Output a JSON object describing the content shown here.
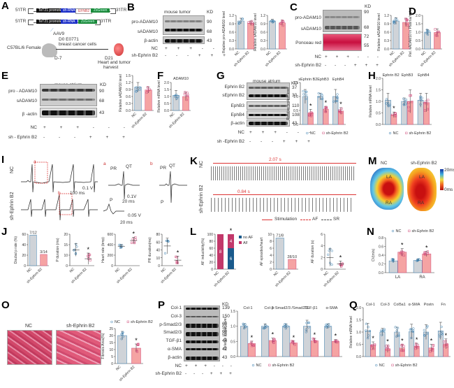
{
  "panels": {
    "A": {
      "label": "A",
      "itr_left": "5'ITR",
      "itr_right": "3'ITR",
      "promoter": "TeT21 promoter",
      "shrna": "sh-RNA",
      "gene": "EFNB2",
      "reporter": "ZsGreen",
      "vector": "AAV9",
      "mouse": "C57BL/6 Female mice",
      "d0": "D0 E0771",
      "d0b": "breast cancer cells",
      "dm7": "D-7",
      "d21": "D21",
      "harvest": "Heart and tumor",
      "harvest2": "harvest"
    },
    "B": {
      "label": "B",
      "title": "mouse tumor",
      "rows": [
        "pro-ADAM10",
        "sADAM10",
        "β-actin"
      ],
      "kd": [
        "90",
        "68",
        "43"
      ],
      "kd_label": "KD",
      "nc": "NC",
      "sh": "sh-Ephrin B2",
      "lanes_nc": [
        "+",
        "+",
        "+",
        "-",
        "-",
        "-"
      ],
      "lanes_sh": [
        "-",
        "-",
        "-",
        "+",
        "+",
        "+"
      ]
    },
    "C": {
      "label": "C",
      "rows": [
        "pro-ADAM10",
        "sADAM10",
        "Ponceau red"
      ],
      "kd": [
        "90",
        "68",
        "72",
        "55"
      ],
      "kd_label": "KD",
      "nc": "NC",
      "sh": "sh-Ephrin B2"
    },
    "D": {
      "label": "D"
    },
    "E": {
      "label": "E",
      "title": "mouse atrium",
      "rows": [
        "pro - ADAM10",
        "sADAM10",
        "β -actin"
      ],
      "kd": [
        "90",
        "68",
        "43"
      ],
      "kd_label": "KD",
      "nc": "NC",
      "sh": "sh - Ephrin B2"
    },
    "F": {
      "label": "F"
    },
    "G": {
      "label": "G",
      "title": "mouse atrium",
      "rows": [
        "Ephrin B2",
        "sEphrin B2",
        "EphB3",
        "EphB4",
        "β-actin"
      ],
      "kd": [
        "37",
        "30",
        "110",
        "108",
        "43"
      ],
      "kd_label": "KD",
      "nc": "NC",
      "sh": "sh -Ephrin B2"
    },
    "H": {
      "label": "H"
    },
    "I": {
      "label": "I",
      "nc": "NC",
      "sh": "sh-Ephrin B2",
      "a": "a",
      "b": "b",
      "scale_v": "0.1 V",
      "scale_t": "100 ms",
      "pr": "PR",
      "qt": "QT",
      "p": "P",
      "sv1": "0.1V",
      "st1": "20 ms",
      "sv2": "0.05 V",
      "st2": "20 ms"
    },
    "J": {
      "label": "J"
    },
    "K": {
      "label": "K",
      "nc": "NC",
      "sh": "sh-Ephrin B2",
      "dur_nc": "2.07 s",
      "dur_sh": "0.84 s",
      "legend": [
        "Stimulation",
        "AF",
        "SR"
      ]
    },
    "L": {
      "label": "L"
    },
    "M": {
      "label": "M",
      "nc": "NC",
      "sh": "sh-Ephrin B2",
      "la": "LA",
      "ra": "RA",
      "scale_max": "20ms",
      "scale_min": "0ms"
    },
    "N": {
      "label": "N"
    },
    "O": {
      "label": "O",
      "nc": "NC",
      "sh": "sh-Ephrin B2"
    },
    "P": {
      "label": "P",
      "rows": [
        "Col-1",
        "Col-3",
        "p-Smad2/3",
        "Smad2/3",
        "TGF-β1",
        "α-SMA",
        "β-actin"
      ],
      "kd": [
        "139",
        "150",
        "60 52",
        "60 52",
        "44",
        "42",
        "43"
      ],
      "kd_label": "KD",
      "nc": "NC",
      "sh": "sh-Ephrin B2"
    },
    "Q": {
      "label": "Q"
    }
  },
  "legend": {
    "nc": "NC",
    "sh": "sh-Ephrin B2"
  },
  "colors": {
    "nc_bar": "#cfd3d8",
    "nc_pt": "#3a7fb0",
    "sh_bar": "#f5a3a3",
    "sh_pt": "#d04a7a",
    "af": "#c2386a",
    "noaf": "#1a5a8c",
    "stim": "#d23a3a"
  },
  "chart_data": [
    {
      "id": "B1",
      "type": "bar",
      "ylabel": "Relative pro-ADAM10 level",
      "categories": [
        "NC",
        "sh-Ephrin B2"
      ],
      "values": [
        1.0,
        0.92
      ],
      "errors": [
        0.1,
        0.08
      ],
      "ylim": [
        0,
        1.2
      ],
      "yticks": [
        "0.0",
        "0.3",
        "0.6",
        "0.9",
        "1.2"
      ]
    },
    {
      "id": "B2",
      "type": "bar",
      "ylabel": "Relative sADAM10 level",
      "categories": [
        "NC",
        "sh-Ephrin B2"
      ],
      "values": [
        1.0,
        0.93
      ],
      "errors": [
        0.06,
        0.1
      ],
      "ylim": [
        0,
        1.2
      ],
      "yticks": [
        "0.0",
        "0.3",
        "0.6",
        "0.9",
        "1.2"
      ]
    },
    {
      "id": "C",
      "type": "bar",
      "ylabel": "Relative sADAM10 level",
      "categories": [
        "NC",
        "sh-Ephrin B2"
      ],
      "values": [
        1.0,
        0.95
      ],
      "errors": [
        0.12,
        0.15
      ],
      "ylim": [
        0,
        1.2
      ],
      "yticks": [
        "0.0",
        "0.3",
        "0.6",
        "0.9",
        "1.2"
      ]
    },
    {
      "id": "D",
      "type": "bar",
      "ylabel": "Rel. sADAM10 in Plasma/ng/ml",
      "categories": [
        "NC",
        "sh-Ephrin B2"
      ],
      "values": [
        1.0,
        0.98
      ],
      "errors": [
        0.15,
        0.22
      ],
      "ylim": [
        0,
        2.0
      ],
      "yticks": [
        "0.0",
        "0.5",
        "1.0",
        "1.5",
        "2.0"
      ]
    },
    {
      "id": "E",
      "type": "bar",
      "ylabel": "Relative sADAM10 level",
      "categories": [
        "NC",
        "sh-Ephrin B2"
      ],
      "values": [
        1.0,
        0.88
      ],
      "errors": [
        0.2,
        0.13
      ],
      "ylim": [
        0,
        1.5
      ],
      "yticks": [
        "0.0",
        "0.3",
        "0.6",
        "0.9",
        "1.2",
        "1.5"
      ]
    },
    {
      "id": "F",
      "type": "bar",
      "title": "ADAM10",
      "ylabel": "Relative mRNA level",
      "categories": [
        "NC",
        "sh-Ephrin B2"
      ],
      "values": [
        1.08,
        1.0
      ],
      "errors": [
        0.35,
        0.3
      ],
      "ylim": [
        0,
        2.0
      ],
      "yticks": [
        "0.0",
        "0.5",
        "1.0",
        "1.5",
        "2.0"
      ]
    },
    {
      "id": "G",
      "type": "bar",
      "ylabel": "Relative protein level",
      "groups": [
        "sEphrin B2",
        "EphB3",
        "EphB4"
      ],
      "series": [
        {
          "name": "NC",
          "values": [
            1.0,
            1.0,
            1.0
          ],
          "errors": [
            0.25,
            0.12,
            0.25
          ]
        },
        {
          "name": "sh-Ephrin B2",
          "values": [
            0.42,
            0.55,
            0.48
          ],
          "errors": [
            0.12,
            0.1,
            0.12
          ]
        }
      ],
      "sig": [
        true,
        true,
        true
      ],
      "ylim": [
        0,
        1.5
      ],
      "yticks": [
        "0.0",
        "0.5",
        "1.0",
        "1.5"
      ]
    },
    {
      "id": "H",
      "type": "bar",
      "ylabel": "Relative mRNA level",
      "groups": [
        "Ephrin B2",
        "EphB3",
        "EphB4"
      ],
      "series": [
        {
          "name": "NC",
          "values": [
            1.05,
            1.0,
            1.05
          ],
          "errors": [
            0.3,
            0.15,
            0.3
          ]
        },
        {
          "name": "sh-Ephrin B2",
          "values": [
            0.42,
            1.0,
            0.95
          ],
          "errors": [
            0.12,
            0.5,
            0.4
          ]
        }
      ],
      "sig": [
        true,
        false,
        false
      ],
      "ylim": [
        0,
        2.0
      ],
      "yticks": [
        "0.0",
        "0.5",
        "1.0",
        "1.5",
        "2.0"
      ]
    },
    {
      "id": "J1",
      "type": "bar",
      "ylabel": "Doubal p rate (%)",
      "categories": [
        "NC",
        "sh-Ephrin B2"
      ],
      "values": [
        58.3,
        21.4
      ],
      "labels": [
        "7/12",
        "3/14"
      ],
      "ylim": [
        0,
        60
      ],
      "yticks": [
        "0",
        "20",
        "40",
        "60"
      ]
    },
    {
      "id": "J2",
      "type": "scatter",
      "ylabel": "P duration (ms)",
      "categories": [
        "NC",
        "sh-Ephrin B2"
      ],
      "values": [
        15,
        12.2
      ],
      "errors": [
        2,
        1.8
      ],
      "sig": true,
      "ylim": [
        10,
        20
      ],
      "yticks": [
        "0",
        "10",
        "15",
        "20"
      ]
    },
    {
      "id": "J3",
      "type": "scatter",
      "ylabel": "Heart rate (bmp)",
      "categories": [
        "NC",
        "sh-Ephrin B2"
      ],
      "values": [
        370,
        480
      ],
      "errors": [
        30,
        60
      ],
      "sig": true,
      "ylim": [
        0,
        600
      ],
      "yticks": [
        "0",
        "200",
        "400",
        "600"
      ]
    },
    {
      "id": "J4",
      "type": "scatter",
      "ylabel": "PR duration(ms)",
      "categories": [
        "NC",
        "sh-Ephrin B2"
      ],
      "values": [
        65,
        47
      ],
      "errors": [
        10,
        5
      ],
      "sig": true,
      "ylim": [
        40,
        80
      ],
      "yticks": [
        "0",
        "10",
        "40",
        "60",
        "80"
      ]
    },
    {
      "id": "L1",
      "type": "stacked-bar",
      "ylabel": "AF inducibility(%)",
      "categories": [
        "NC",
        "sh-Ephrin B2"
      ],
      "series": [
        {
          "name": "AF",
          "values": [
            100,
            40
          ],
          "labels": [
            "8",
            "4"
          ]
        },
        {
          "name": "no AF",
          "values": [
            0,
            60
          ],
          "labels": [
            "",
            "6"
          ]
        }
      ],
      "sig": [
        false,
        true
      ],
      "ylim": [
        0,
        100
      ],
      "yticks": [
        "0",
        "20",
        "40",
        "60",
        "80",
        "100"
      ]
    },
    {
      "id": "L2",
      "type": "bar",
      "ylabel": "AF episodes/heart",
      "categories": [
        "NC",
        "sh-Ephrin B2"
      ],
      "values": [
        8.9,
        2.8
      ],
      "labels": [
        "71/8",
        "28/10"
      ],
      "ylim": [
        0,
        10
      ],
      "yticks": [
        "0",
        "2",
        "4",
        "6",
        "8",
        "10"
      ]
    },
    {
      "id": "L3",
      "type": "scatter",
      "ylabel": "AF duration (s)",
      "categories": [
        "NC",
        "sh-Ephrin B2"
      ],
      "values": [
        2.0,
        0.9
      ],
      "errors": [
        1.5,
        0.5
      ],
      "sig": true,
      "ylim": [
        0,
        6
      ],
      "yticks": [
        "0",
        "2",
        "4",
        "6"
      ]
    },
    {
      "id": "N",
      "type": "bar",
      "ylabel": "CV(m/s)",
      "groups": [
        "LA",
        "RA"
      ],
      "series": [
        {
          "name": "NC",
          "values": [
            0.27,
            0.28
          ],
          "errors": [
            0.04,
            0.03
          ]
        },
        {
          "name": "sh-Ephrin B2",
          "values": [
            0.47,
            0.43
          ],
          "errors": [
            0.08,
            0.06
          ]
        }
      ],
      "sig": [
        true,
        true
      ],
      "ylim": [
        0,
        0.8
      ],
      "yticks": [
        "0.0",
        "0.2",
        "0.4",
        "0.6",
        "0.8"
      ]
    },
    {
      "id": "O",
      "type": "bar",
      "ylabel": "Fibrosis Area(%)",
      "categories": [
        "NC",
        "sh-Ephrin B2"
      ],
      "values": [
        20,
        11
      ],
      "errors": [
        3,
        3
      ],
      "sig": [
        false,
        true
      ],
      "ylim": [
        0,
        25
      ],
      "yticks": [
        "0",
        "5",
        "10",
        "15",
        "20",
        "25"
      ]
    },
    {
      "id": "P",
      "type": "bar",
      "ylabel": "Relative protein level",
      "groups": [
        "Col-1",
        "Col-3",
        "p-Smad2/3 /Smad2/3",
        "TGF-β1",
        "α-SMA"
      ],
      "series": [
        {
          "name": "NC",
          "values": [
            1.0,
            1.0,
            1.0,
            1.0,
            1.0
          ],
          "errors": [
            0.08,
            0.08,
            0.08,
            0.2,
            0.08
          ]
        },
        {
          "name": "sh-Ephrin B2",
          "values": [
            0.43,
            0.53,
            0.45,
            0.52,
            0.5
          ],
          "errors": [
            0.08,
            0.08,
            0.06,
            0.08,
            0.06
          ]
        }
      ],
      "sig": [
        true,
        true,
        true,
        true,
        true
      ],
      "ylim": [
        0,
        1.5
      ],
      "yticks": [
        "0.0",
        "0.5",
        "1.0",
        "1.5"
      ]
    },
    {
      "id": "Q",
      "type": "bar",
      "ylabel": "Relative mRNA level",
      "groups": [
        "Col-1",
        "Col-3",
        "Col5a1",
        "α-SMA",
        "Postn",
        "Fn"
      ],
      "series": [
        {
          "name": "NC",
          "values": [
            1.05,
            1.0,
            1.0,
            1.02,
            1.0,
            1.05
          ],
          "errors": [
            0.3,
            0.15,
            0.2,
            0.3,
            0.3,
            0.35
          ]
        },
        {
          "name": "sh-Ephrin B2",
          "values": [
            0.45,
            0.32,
            0.35,
            0.42,
            0.35,
            0.52
          ],
          "errors": [
            0.15,
            0.15,
            0.15,
            0.12,
            0.15,
            0.2
          ]
        }
      ],
      "sig": [
        true,
        true,
        true,
        true,
        true,
        true
      ],
      "ylim": [
        0,
        2.0
      ],
      "yticks": [
        "0.0",
        "0.5",
        "1.0",
        "1.5",
        "2.0"
      ]
    }
  ]
}
